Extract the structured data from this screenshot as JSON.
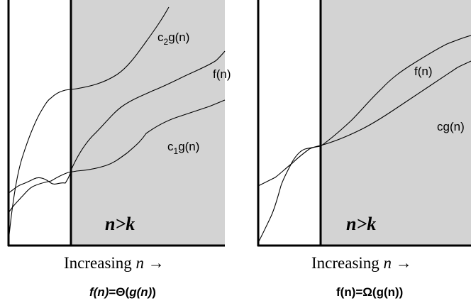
{
  "left_panel": {
    "curve_labels": {
      "c2": {
        "base": "c",
        "sub": "2",
        "rest": "g(n)"
      },
      "f": "f(n)",
      "c1": {
        "base": "c",
        "sub": "1",
        "rest": "g(n)"
      }
    },
    "region_label": "n>k",
    "axis_caption": {
      "text": "Increasing ",
      "var": "n",
      "arrow": " →"
    },
    "formula": {
      "f": "f(n)",
      "eq": "=Θ(",
      "g": "g(n)",
      "close": ")"
    }
  },
  "right_panel": {
    "curve_labels": {
      "f": "f(n)",
      "cg": "cg(n)"
    },
    "region_label": "n>k",
    "axis_caption": {
      "text": "Increasing ",
      "var": "n",
      "arrow": " →"
    },
    "formula": "f(n)=Ω(g(n))"
  },
  "colors": {
    "shaded_region": "#d3d3d3",
    "ink": "#000000",
    "background": "#ffffff"
  }
}
